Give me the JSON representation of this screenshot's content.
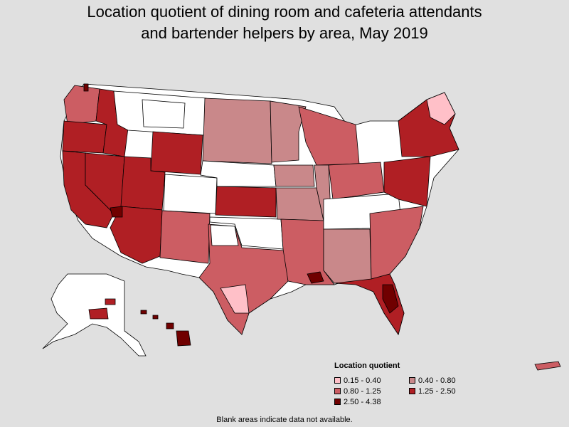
{
  "title_line1": "Location quotient of dining room and cafeteria attendants",
  "title_line2": "and bartender helpers by area, May 2019",
  "legend": {
    "title": "Location quotient",
    "items": [
      {
        "label": "0.15 - 0.40",
        "color": "#ffc0c8"
      },
      {
        "label": "0.40 - 0.80",
        "color": "#c9888a"
      },
      {
        "label": "0.80 - 1.25",
        "color": "#cc5d63"
      },
      {
        "label": "1.25 - 2.50",
        "color": "#b01f24"
      },
      {
        "label": "2.50 - 4.38",
        "color": "#700000"
      }
    ]
  },
  "footnote": "Blank areas indicate data not available.",
  "colors": {
    "background": "#e0e0e0",
    "no_data": "#ffffff",
    "border": "#000000"
  }
}
